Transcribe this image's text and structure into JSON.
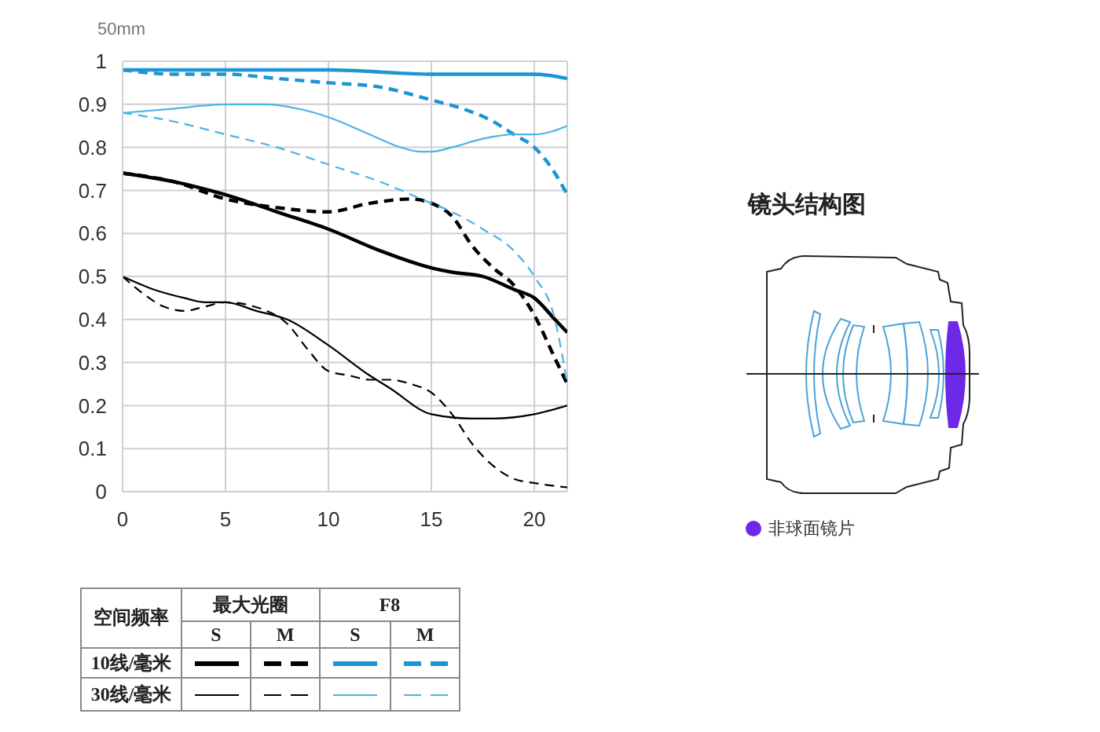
{
  "chart_data": {
    "type": "line",
    "title": "50mm",
    "legend_title": "空间频率",
    "annotations": [
      "最大光圈",
      "F8",
      "S",
      "M",
      "S",
      "M",
      "10线/毫米",
      "30线/毫米",
      "镜头结构图",
      "非球面镜片"
    ],
    "xlim": [
      0,
      21.6
    ],
    "xticks": [
      0,
      5,
      10,
      15,
      20
    ],
    "ylim": [
      0,
      1
    ],
    "yticks": [
      0,
      0.1,
      0.2,
      0.3,
      0.4,
      0.5,
      0.6,
      0.7,
      0.8,
      0.9,
      1
    ],
    "grid": true,
    "marker": "none",
    "series": [
      {
        "color": "#000000",
        "line_style": "solid",
        "x": [
          0,
          2.5,
          5,
          7.5,
          10,
          12.5,
          15,
          16,
          17.5,
          19,
          20,
          21,
          21.6
        ],
        "values": [
          0.74,
          0.72,
          0.69,
          0.65,
          0.61,
          0.56,
          0.52,
          0.51,
          0.5,
          0.47,
          0.45,
          0.4,
          0.37
        ]
      },
      {
        "color": "#000000",
        "line_style": "dashed",
        "x": [
          0,
          2.5,
          5,
          7.5,
          10,
          12,
          14,
          15,
          16,
          17,
          18,
          19,
          20,
          21,
          21.6
        ],
        "values": [
          0.74,
          0.72,
          0.68,
          0.66,
          0.65,
          0.67,
          0.68,
          0.67,
          0.64,
          0.57,
          0.52,
          0.48,
          0.41,
          0.31,
          0.25
        ]
      },
      {
        "color": "#000000",
        "line_style": "solid",
        "x": [
          0,
          1.5,
          3,
          4,
          5,
          6.5,
          8,
          10,
          12,
          13,
          15,
          17,
          18,
          20,
          21.6
        ],
        "values": [
          0.5,
          0.47,
          0.45,
          0.44,
          0.44,
          0.42,
          0.4,
          0.34,
          0.27,
          0.24,
          0.18,
          0.17,
          0.17,
          0.18,
          0.2
        ]
      },
      {
        "color": "#000000",
        "line_style": "dashed",
        "x": [
          0,
          1,
          2,
          3,
          4,
          5,
          7,
          8,
          9,
          10,
          11,
          12,
          13,
          14,
          15,
          16,
          17,
          18,
          19,
          20,
          21.6
        ],
        "values": [
          0.5,
          0.46,
          0.43,
          0.42,
          0.43,
          0.44,
          0.42,
          0.39,
          0.33,
          0.28,
          0.27,
          0.26,
          0.26,
          0.25,
          0.23,
          0.18,
          0.11,
          0.06,
          0.03,
          0.02,
          0.01
        ]
      },
      {
        "color": "#1b95d3",
        "line_style": "solid",
        "x": [
          0,
          5,
          7.5,
          10,
          15,
          18,
          20,
          21.6
        ],
        "values": [
          0.98,
          0.98,
          0.98,
          0.98,
          0.97,
          0.97,
          0.97,
          0.96
        ]
      },
      {
        "color": "#1b95d3",
        "line_style": "dashed",
        "x": [
          0,
          2.5,
          5,
          7.5,
          10,
          12.5,
          15,
          16.5,
          18,
          19,
          20,
          21,
          21.6
        ],
        "values": [
          0.98,
          0.97,
          0.97,
          0.96,
          0.95,
          0.94,
          0.91,
          0.89,
          0.86,
          0.83,
          0.8,
          0.74,
          0.69
        ]
      },
      {
        "color": "#4db3e4",
        "line_style": "solid",
        "x": [
          0,
          2.5,
          5,
          7,
          8.5,
          10,
          12,
          13.5,
          14.5,
          15,
          16,
          17.5,
          19,
          20,
          21.6
        ],
        "values": [
          0.88,
          0.89,
          0.9,
          0.9,
          0.89,
          0.87,
          0.83,
          0.8,
          0.79,
          0.79,
          0.8,
          0.82,
          0.83,
          0.83,
          0.85
        ]
      },
      {
        "color": "#4db3e4",
        "line_style": "dashed",
        "x": [
          0,
          2.5,
          5,
          7.5,
          10,
          12.5,
          15,
          16,
          17.5,
          19,
          20,
          21,
          21.6
        ],
        "values": [
          0.88,
          0.86,
          0.83,
          0.8,
          0.76,
          0.72,
          0.67,
          0.65,
          0.61,
          0.56,
          0.5,
          0.4,
          0.25
        ]
      }
    ]
  }
}
